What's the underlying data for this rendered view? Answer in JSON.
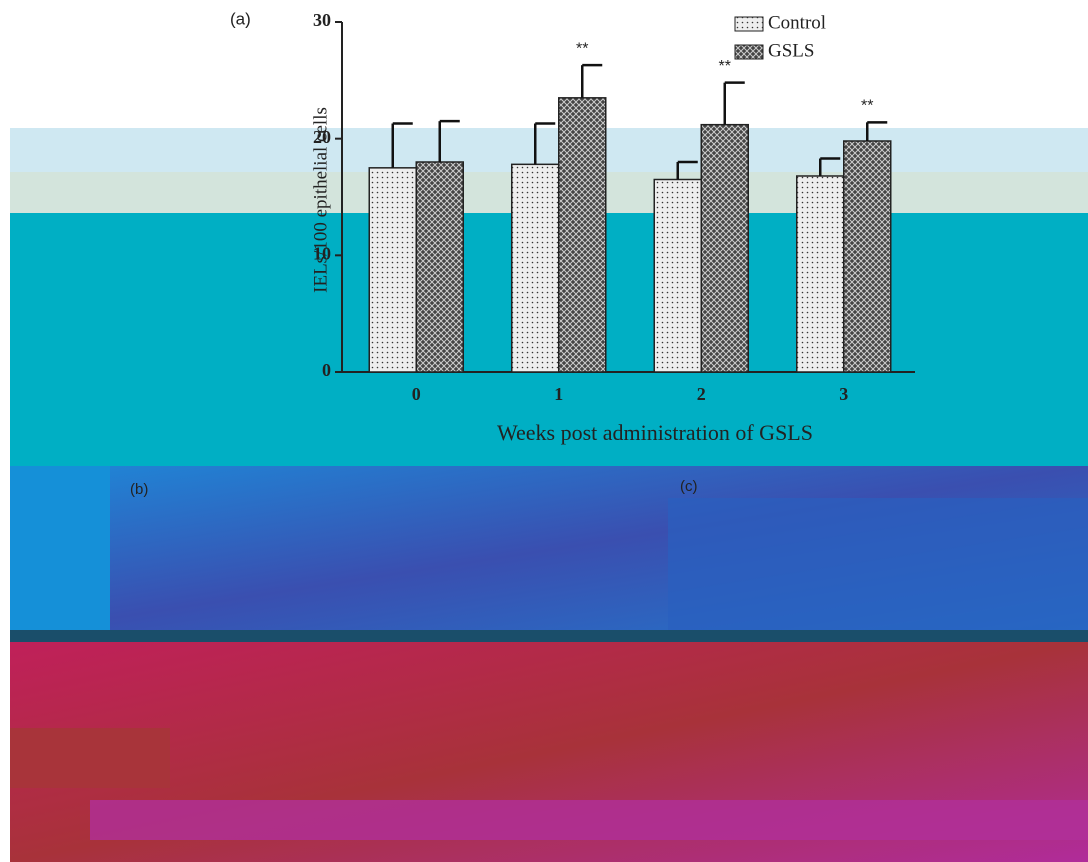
{
  "chart_data": {
    "type": "bar",
    "panel_label": "(a)",
    "y_label": "IELs/100 epithelial cells",
    "x_label": "Weeks post administration of GSLS",
    "categories": [
      "0",
      "1",
      "2",
      "3"
    ],
    "series": [
      {
        "name": "Control",
        "color": "#eeeeee",
        "values": [
          17.5,
          17.8,
          16.5,
          16.8
        ],
        "errors": [
          3.8,
          3.5,
          1.5,
          1.5
        ]
      },
      {
        "name": "GSLS",
        "color": "#444444",
        "values": [
          18,
          23.5,
          21.2,
          19.8
        ],
        "errors": [
          3.5,
          2.8,
          3.6,
          1.6
        ]
      }
    ],
    "annotations": [
      null,
      "**",
      "**",
      "**"
    ],
    "ylim": [
      0,
      30
    ],
    "yticks": [
      0,
      10,
      20,
      30
    ],
    "legend": "upper right"
  },
  "panels": [
    "(b)",
    "(c)"
  ]
}
